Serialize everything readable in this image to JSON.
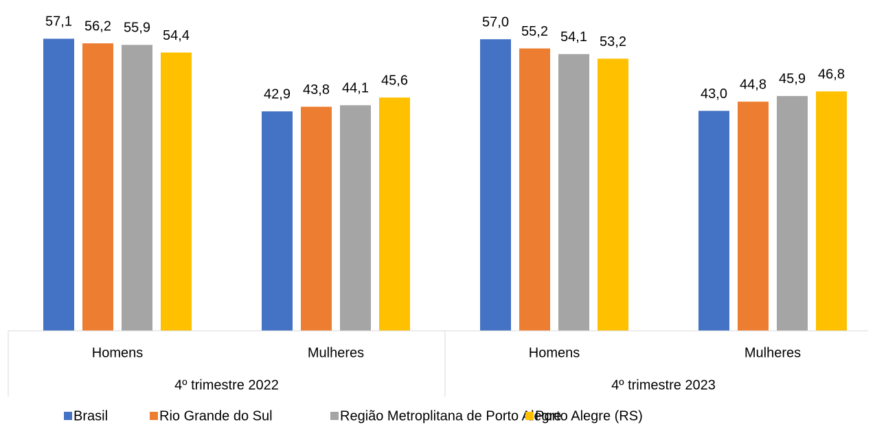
{
  "chart_data": {
    "type": "bar",
    "categories": [
      "Homens",
      "Mulheres",
      "Homens",
      "Mulheres"
    ],
    "groups": [
      "4º trimestre 2022",
      "4º trimestre 2023"
    ],
    "series": [
      {
        "name": "Brasil",
        "color": "#4472c4",
        "values": [
          57.1,
          42.9,
          57.0,
          43.0
        ],
        "value_labels": [
          "57,1",
          "42,9",
          "57,0",
          "43,0"
        ]
      },
      {
        "name": "Rio Grande do Sul",
        "color": "#ed7d31",
        "values": [
          56.2,
          43.8,
          55.2,
          44.8
        ],
        "value_labels": [
          "56,2",
          "43,8",
          "55,2",
          "44,8"
        ]
      },
      {
        "name": "Região Metroplitana de Porto Alegre",
        "color": "#a5a5a5",
        "values": [
          55.9,
          44.1,
          54.1,
          45.9
        ],
        "value_labels": [
          "55,9",
          "44,1",
          "54,1",
          "45,9"
        ]
      },
      {
        "name": "Porto Alegre (RS)",
        "color": "#ffc000",
        "values": [
          54.4,
          45.6,
          53.2,
          46.8
        ],
        "value_labels": [
          "54,4",
          "45,6",
          "53,2",
          "46,8"
        ]
      }
    ],
    "ylim": [
      0,
      64
    ],
    "legend": "bottom"
  }
}
